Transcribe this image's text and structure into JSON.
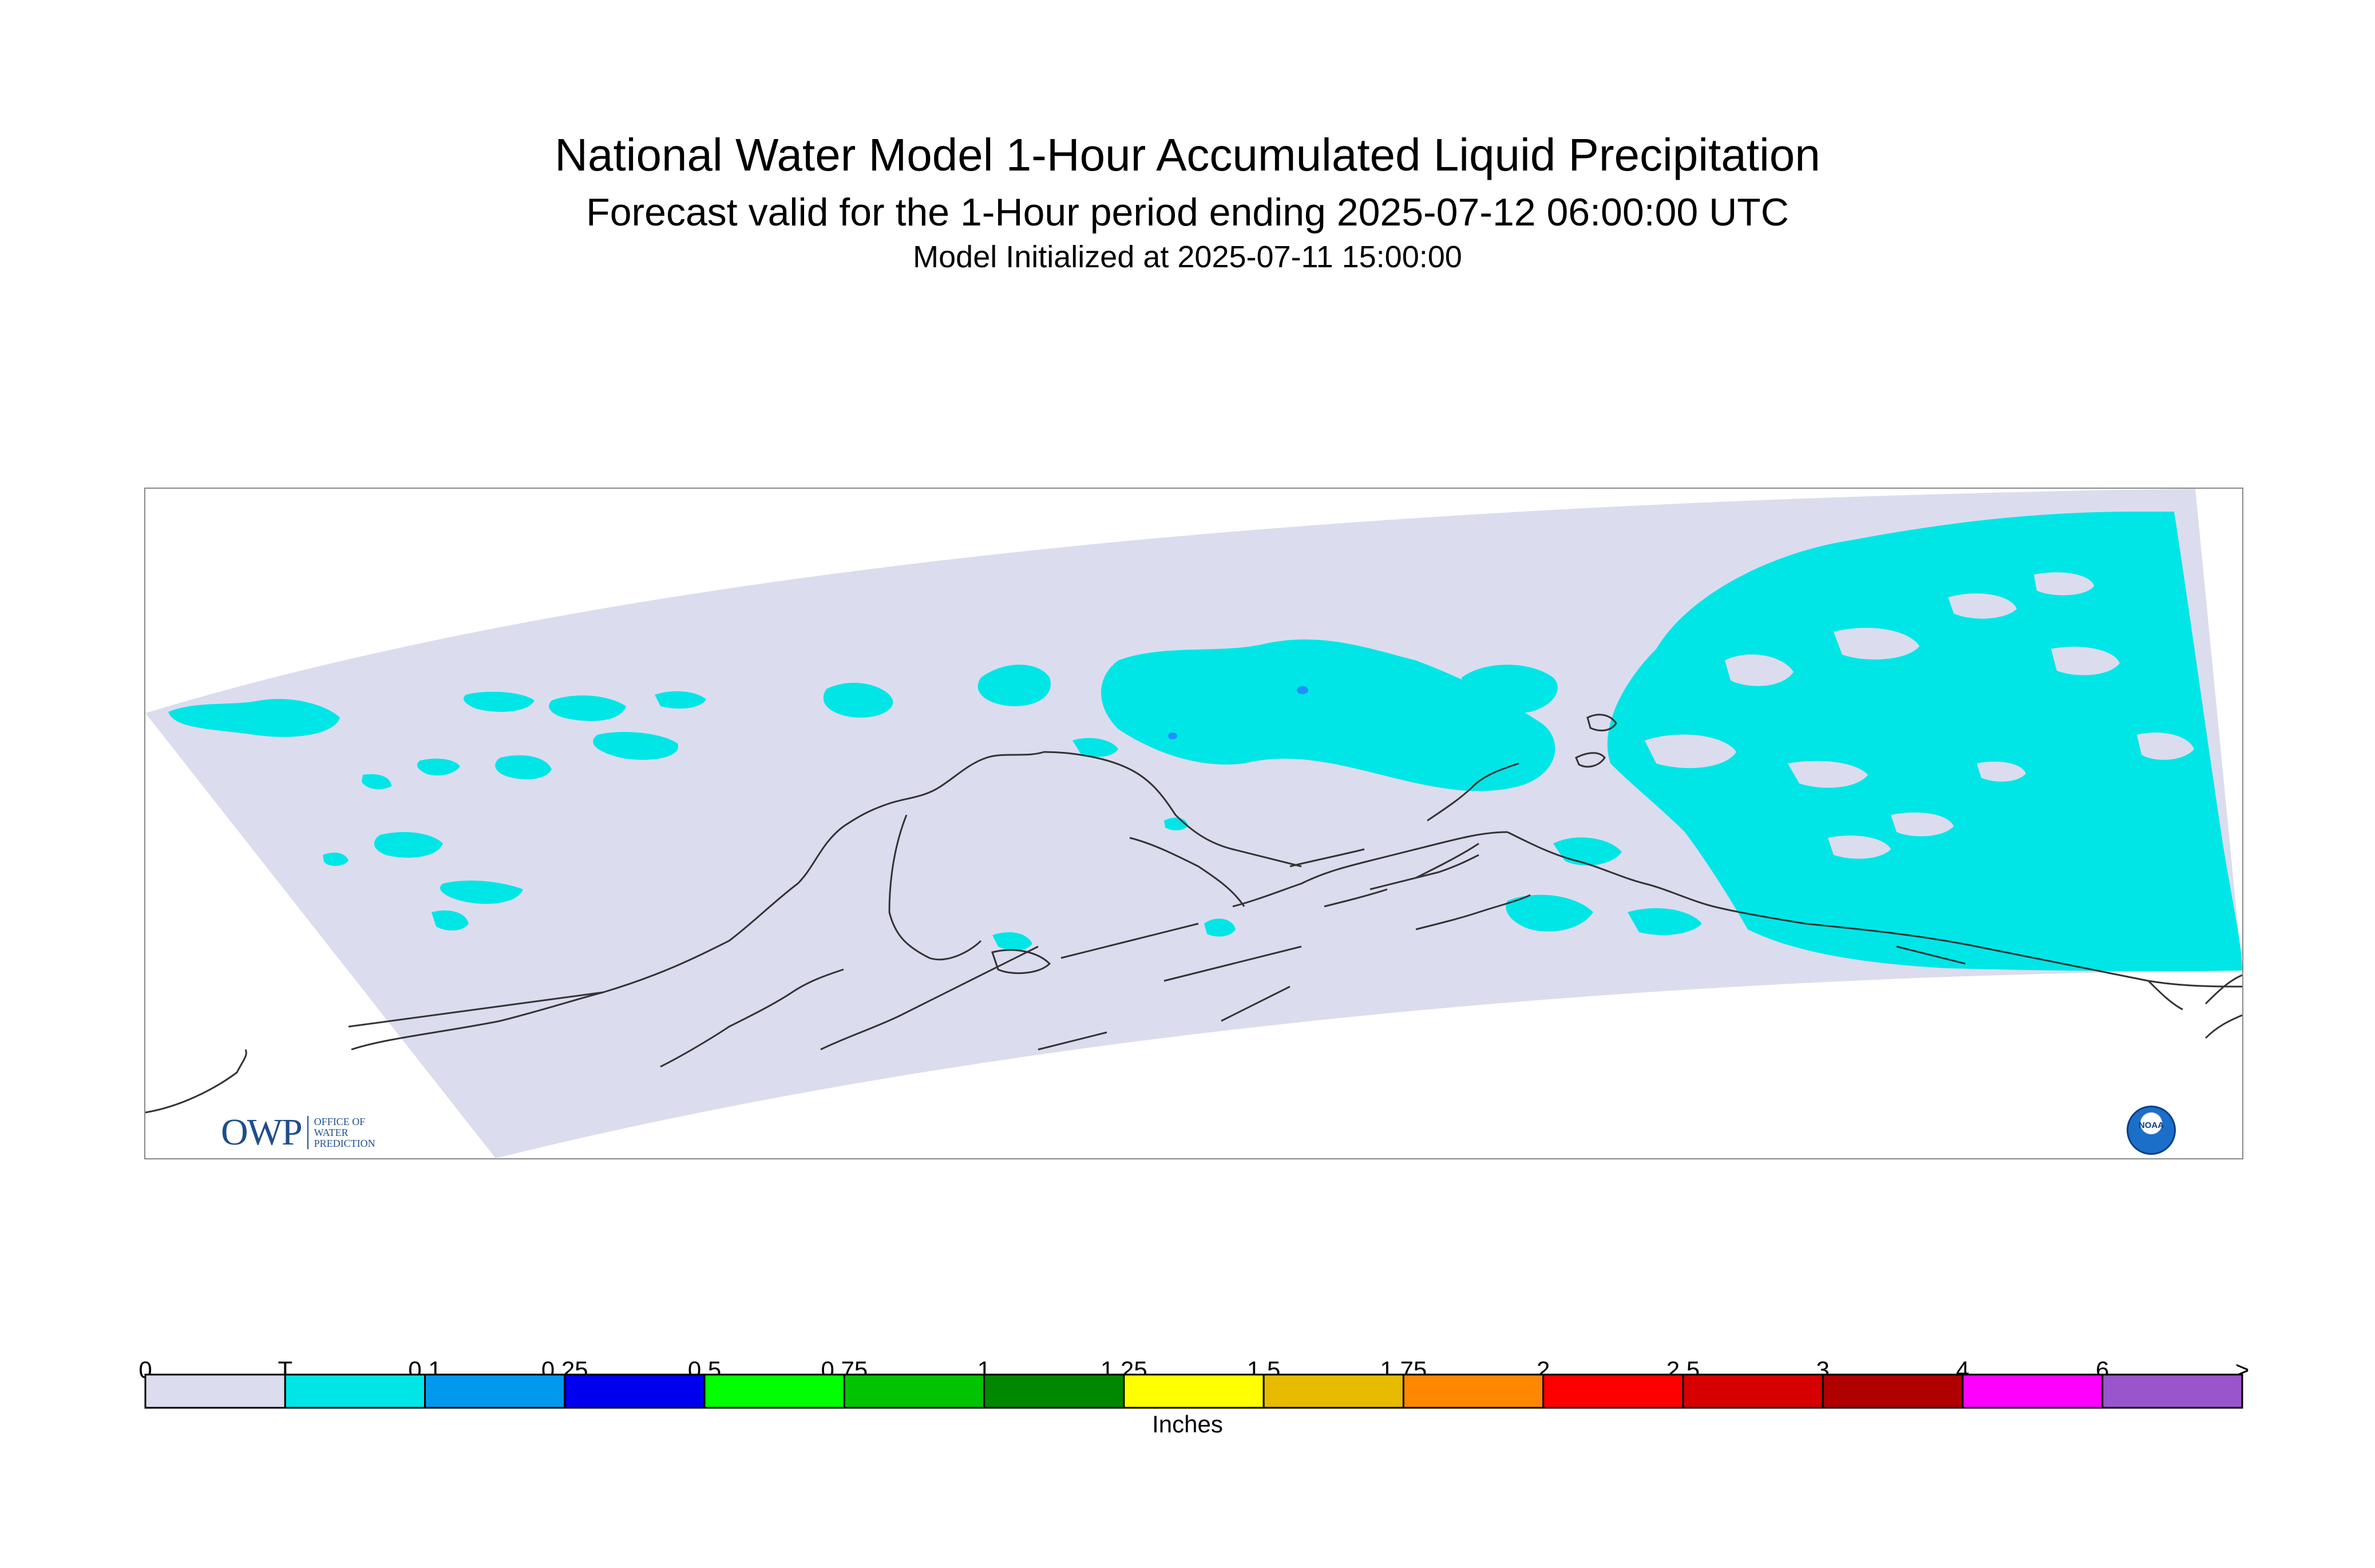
{
  "title": "National Water Model 1-Hour Accumulated Liquid Precipitation",
  "subtitle": "Forecast valid for the 1-Hour period ending 2025-07-12 06:00:00 UTC",
  "init_line": "Model Initialized at 2025-07-11 15:00:00",
  "owp_logo": {
    "mark": "OWP",
    "line1": "OFFICE OF",
    "line2": "WATER",
    "line3": "PREDICTION"
  },
  "noaa_logo": {
    "text": "NOAA"
  },
  "colors": {
    "domain_fill": "#dcdcef",
    "trace": "#00e6e6",
    "coast": "#333333",
    "owp_blue": "#1f4e8c",
    "noaa_blue": "#1b6fc8"
  },
  "legend": {
    "units_label": "Inches",
    "tick_labels": [
      "0",
      "T",
      "0.1",
      "0.25",
      "0.5",
      "0.75",
      "1",
      "1.25",
      "1.5",
      "1.75",
      "2",
      "2.5",
      "3",
      "4",
      "6",
      ">"
    ],
    "bins": [
      {
        "color": "#dcdcef"
      },
      {
        "color": "#00e6e6"
      },
      {
        "color": "#0099ee"
      },
      {
        "color": "#0000ee"
      },
      {
        "color": "#00ff00"
      },
      {
        "color": "#00c400"
      },
      {
        "color": "#008800"
      },
      {
        "color": "#ffff00"
      },
      {
        "color": "#e6bb00"
      },
      {
        "color": "#ff8800"
      },
      {
        "color": "#ff0000"
      },
      {
        "color": "#d60000"
      },
      {
        "color": "#b00000"
      },
      {
        "color": "#ff00ff"
      },
      {
        "color": "#9955cc"
      }
    ]
  }
}
